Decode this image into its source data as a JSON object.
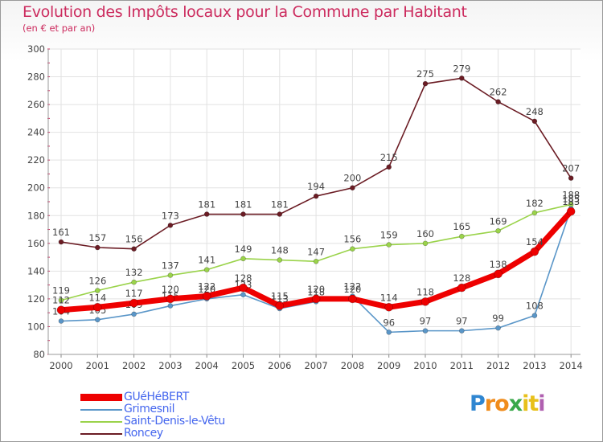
{
  "chart_data": {
    "type": "line",
    "title": "Evolution des Impôts locaux pour la Commune par Habitant",
    "subtitle": "(en € et par an)",
    "xlabel": "",
    "ylabel": "",
    "ylim": [
      80,
      300
    ],
    "yticks": [
      80,
      100,
      120,
      140,
      160,
      180,
      200,
      220,
      240,
      260,
      280,
      300
    ],
    "categories": [
      "2000",
      "2001",
      "2002",
      "2003",
      "2004",
      "2005",
      "2006",
      "2007",
      "2008",
      "2009",
      "2010",
      "2011",
      "2012",
      "2013",
      "2014"
    ],
    "series": [
      {
        "name": "Roncey",
        "color": "#6b1c24",
        "values": [
          161,
          157,
          156,
          173,
          181,
          181,
          181,
          194,
          200,
          215,
          275,
          279,
          262,
          248,
          207
        ]
      },
      {
        "name": "Saint-Denis-le-Vêtu",
        "color": "#9ad34a",
        "values": [
          119,
          126,
          132,
          137,
          141,
          149,
          148,
          147,
          156,
          159,
          160,
          165,
          169,
          182,
          188
        ]
      },
      {
        "name": "Grimesnil",
        "color": "#5a96c8",
        "values": [
          104,
          105,
          109,
          115,
          120,
          123,
          113,
          118,
          122,
          96,
          97,
          97,
          99,
          108,
          185
        ]
      },
      {
        "name": "GUéHéBERT",
        "color": "#ee0000",
        "values": [
          112,
          114,
          117,
          120,
          122,
          128,
          115,
          120,
          120,
          114,
          118,
          128,
          138,
          154,
          183
        ]
      }
    ],
    "data_labels": {
      "Roncey": [
        "161",
        "157",
        "156",
        "173",
        "181",
        "181",
        "181",
        "194",
        "200",
        "215",
        "275",
        "279",
        "262",
        "248",
        "207"
      ],
      "Saint-Denis-le-Vêtu": [
        "119",
        "126",
        "132",
        "137",
        "141",
        "149",
        "148",
        "147",
        "156",
        "159",
        "160",
        "165",
        "169",
        "182",
        "188"
      ],
      "Grimesnil": [
        "104",
        "105",
        "109",
        "115",
        "120",
        "123",
        "113",
        "118",
        "122",
        "96",
        "97",
        "97",
        "99",
        "108",
        "185"
      ],
      "GUéHéBERT": [
        "112",
        "114",
        "117",
        "120",
        "122",
        "128",
        "115",
        "120",
        "120",
        "114",
        "118",
        "128",
        "138",
        "154",
        "183"
      ]
    },
    "grid": true,
    "legend_position": "bottom-left"
  },
  "legend": [
    {
      "name": "GUéHéBERT",
      "color": "#ee0000",
      "label_color": "#4466ee"
    },
    {
      "name": "Grimesnil",
      "color": "#5a96c8",
      "label_color": "#4466ee"
    },
    {
      "name": "Saint-Denis-le-Vêtu",
      "color": "#9ad34a",
      "label_color": "#4466ee"
    },
    {
      "name": "Roncey",
      "color": "#6b1c24",
      "label_color": "#4466ee"
    }
  ],
  "logo": {
    "letters": [
      "P",
      "r",
      "o",
      "x",
      "i",
      "t",
      "i"
    ],
    "colors": [
      "#2f86d1",
      "#f08c1c",
      "#f08c1c",
      "#39a84a",
      "#e8c01a",
      "#e8c01a",
      "#b060b0"
    ]
  }
}
